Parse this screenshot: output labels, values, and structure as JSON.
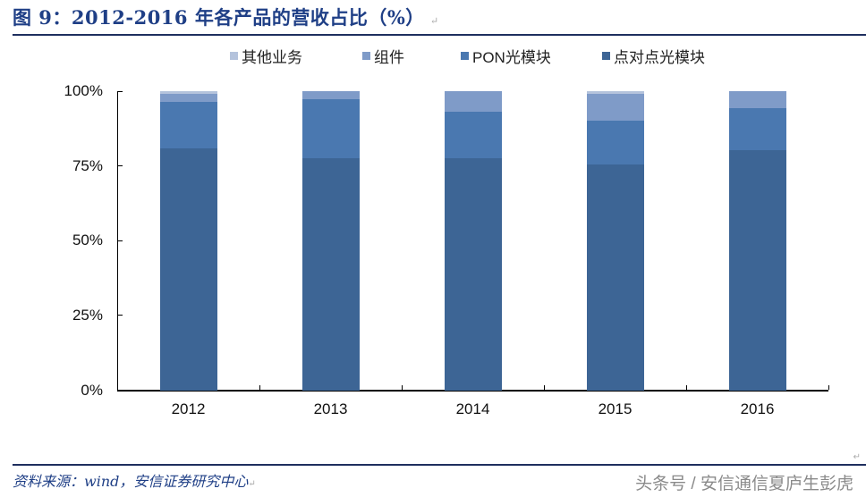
{
  "header": {
    "title": "图 9：2012-2016 年各产品的营收占比（%）",
    "return_mark": "↵"
  },
  "footer": {
    "source": "资料来源：wind，安信证券研究中心",
    "return_mark": "↵",
    "watermark": "头条号 / 安信通信夏庐生彭虎",
    "corner_mark": "↵"
  },
  "colors": {
    "other": "#b4c3dc",
    "component": "#7f9bc8",
    "pon": "#4a78b0",
    "p2p": "#3d6595",
    "title": "#1f3f86"
  },
  "chart_data": {
    "type": "bar",
    "stacked": true,
    "title": "2012-2016 年各产品的营收占比（%）",
    "xlabel": "",
    "ylabel": "",
    "ylim": [
      0,
      100
    ],
    "yticks": [
      "0%",
      "25%",
      "50%",
      "75%",
      "100%"
    ],
    "grid": false,
    "legend_position": "top",
    "categories": [
      "2012",
      "2013",
      "2014",
      "2015",
      "2016"
    ],
    "series": [
      {
        "name": "点对点光模块",
        "color": "#3d6595",
        "values": [
          81.0,
          77.5,
          77.6,
          75.6,
          80.2
        ]
      },
      {
        "name": "PON光模块",
        "color": "#4a78b0",
        "values": [
          15.5,
          19.8,
          15.4,
          14.4,
          14.1
        ]
      },
      {
        "name": "组件",
        "color": "#7f9bc8",
        "values": [
          2.5,
          2.7,
          7.0,
          9.0,
          5.7
        ]
      },
      {
        "name": "其他业务",
        "color": "#b4c3dc",
        "values": [
          1.0,
          0.0,
          0.0,
          1.0,
          0.0
        ]
      }
    ],
    "legend_order": [
      "其他业务",
      "组件",
      "PON光模块",
      "点对点光模块"
    ]
  }
}
